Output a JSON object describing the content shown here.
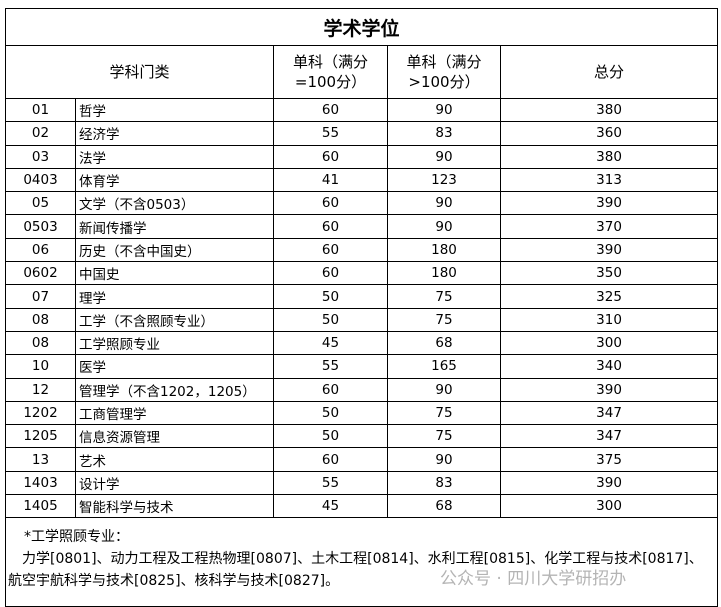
{
  "title": "学术学位",
  "headers": {
    "category": "学科门类",
    "single_100_line1": "单科（满分",
    "single_100_line2": "=100分）",
    "single_over_line1": "单科（满分",
    "single_over_line2": ">100分）",
    "total": "总分"
  },
  "rows": [
    {
      "code": "01",
      "name": "哲学",
      "s100": "60",
      "sover": "90",
      "total": "380"
    },
    {
      "code": "02",
      "name": "经济学",
      "s100": "55",
      "sover": "83",
      "total": "360"
    },
    {
      "code": "03",
      "name": "法学",
      "s100": "60",
      "sover": "90",
      "total": "380"
    },
    {
      "code": "0403",
      "name": "体育学",
      "s100": "41",
      "sover": "123",
      "total": "313"
    },
    {
      "code": "05",
      "name": "文学（不含0503）",
      "s100": "60",
      "sover": "90",
      "total": "390"
    },
    {
      "code": "0503",
      "name": "新闻传播学",
      "s100": "60",
      "sover": "90",
      "total": "370"
    },
    {
      "code": "06",
      "name": "历史（不含中国史）",
      "s100": "60",
      "sover": "180",
      "total": "390"
    },
    {
      "code": "0602",
      "name": "中国史",
      "s100": "60",
      "sover": "180",
      "total": "350"
    },
    {
      "code": "07",
      "name": "理学",
      "s100": "50",
      "sover": "75",
      "total": "325"
    },
    {
      "code": "08",
      "name": "工学（不含照顾专业）",
      "s100": "50",
      "sover": "75",
      "total": "310"
    },
    {
      "code": "08",
      "name": "工学照顾专业",
      "s100": "45",
      "sover": "68",
      "total": "300"
    },
    {
      "code": "10",
      "name": "医学",
      "s100": "55",
      "sover": "165",
      "total": "340"
    },
    {
      "code": "12",
      "name": "管理学（不含1202，1205）",
      "s100": "60",
      "sover": "90",
      "total": "390"
    },
    {
      "code": "1202",
      "name": "工商管理学",
      "s100": "50",
      "sover": "75",
      "total": "347"
    },
    {
      "code": "1205",
      "name": "信息资源管理",
      "s100": "50",
      "sover": "75",
      "total": "347"
    },
    {
      "code": "13",
      "name": "艺术",
      "s100": "60",
      "sover": "90",
      "total": "375"
    },
    {
      "code": "1403",
      "name": "设计学",
      "s100": "55",
      "sover": "83",
      "total": "390"
    },
    {
      "code": "1405",
      "name": "智能科学与技术",
      "s100": "45",
      "sover": "68",
      "total": "300"
    }
  ],
  "note": {
    "heading": "*工学照顾专业：",
    "body": "力学[0801]、动力工程及工程热物理[0807]、土木工程[0814]、水利工程[0815]、化学工程与技术[0817]、航空宇航科学与技术[0825]、核科学与技术[0827]。"
  },
  "watermark": "公众号 · 四川大学研招办"
}
